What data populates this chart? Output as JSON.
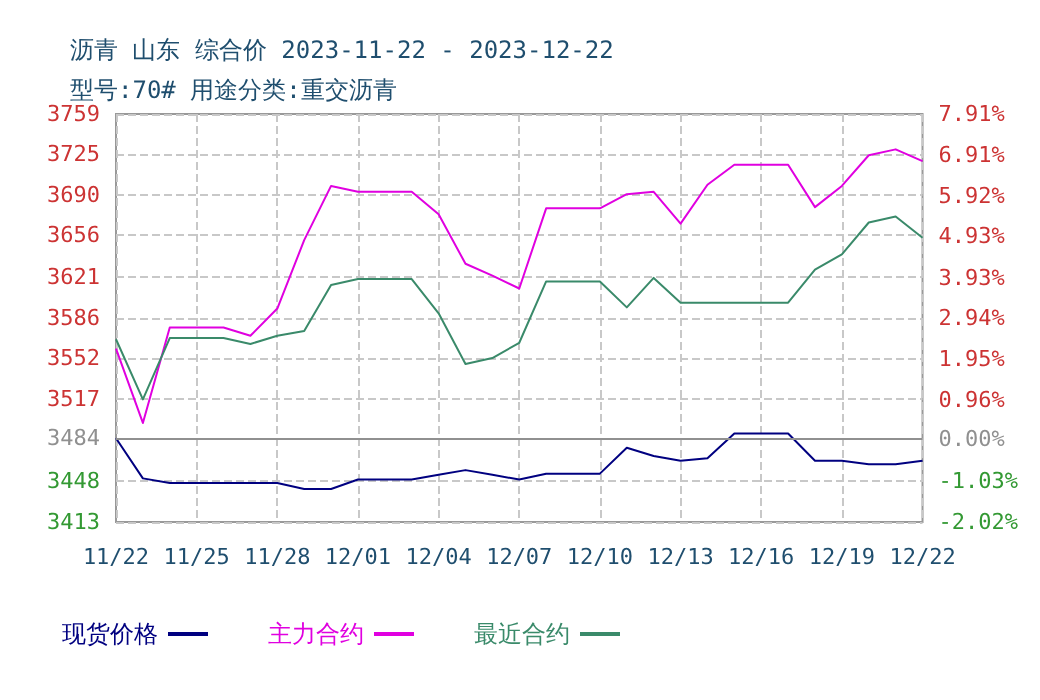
{
  "chart_data": {
    "type": "line",
    "title": "沥青 山东 综合价 2023-11-22 - 2023-12-22",
    "subtitle": "型号:70# 用途分类:重交沥青",
    "categories": [
      "11/22",
      null,
      null,
      "11/25",
      null,
      null,
      "11/28",
      null,
      null,
      "12/01",
      null,
      null,
      "12/04",
      null,
      null,
      "12/07",
      null,
      null,
      "12/10",
      null,
      null,
      "12/13",
      null,
      null,
      "12/16",
      null,
      null,
      "12/19",
      null,
      null,
      "12/22"
    ],
    "series": [
      {
        "name": "现货价格",
        "color": "#000080",
        "values": [
          3484,
          3450,
          3446,
          3446,
          3446,
          3446,
          3446,
          3441,
          3441,
          3449,
          3449,
          3449,
          3453,
          3457,
          3453,
          3449,
          3454,
          3454,
          3454,
          3476,
          3469,
          3465,
          3467,
          3488,
          3488,
          3488,
          3465,
          3465,
          3462,
          3462,
          3465
        ]
      },
      {
        "name": "主力合约",
        "color": "#e000e0",
        "values": [
          3560,
          3497,
          3578,
          3578,
          3578,
          3571,
          3594,
          3652,
          3698,
          3693,
          3693,
          3693,
          3674,
          3632,
          3622,
          3611,
          3679,
          3679,
          3679,
          3691,
          3693,
          3666,
          3699,
          3716,
          3716,
          3716,
          3680,
          3698,
          3724,
          3729,
          3719
        ]
      },
      {
        "name": "最近合约",
        "color": "#3a8a6a",
        "values": [
          3568,
          3517,
          3569,
          3569,
          3569,
          3564,
          3571,
          3575,
          3614,
          3619,
          3619,
          3619,
          3590,
          3547,
          3552,
          3565,
          3617,
          3617,
          3617,
          3595,
          3620,
          3599,
          3599,
          3599,
          3599,
          3599,
          3627,
          3640,
          3667,
          3672,
          3654
        ]
      }
    ],
    "ylim": [
      3413,
      3759
    ],
    "yticks": [
      3413,
      3448,
      3484,
      3517,
      3552,
      3586,
      3621,
      3656,
      3690,
      3725,
      3759
    ],
    "y2lim": [
      -2.02,
      7.91
    ],
    "y2ticks": [
      {
        "value": -2.02,
        "label": "-2.02%"
      },
      {
        "value": -1.03,
        "label": "-1.03%"
      },
      {
        "value": 0,
        "label": "0.00%"
      },
      {
        "value": 0.96,
        "label": "0.96%"
      },
      {
        "value": 1.95,
        "label": "1.95%"
      },
      {
        "value": 2.94,
        "label": "2.94%"
      },
      {
        "value": 3.93,
        "label": "3.93%"
      },
      {
        "value": 4.93,
        "label": "4.93%"
      },
      {
        "value": 5.92,
        "label": "5.92%"
      },
      {
        "value": 6.91,
        "label": "6.91%"
      },
      {
        "value": 7.91,
        "label": "7.91%"
      }
    ],
    "ref_lines": [
      {
        "axis": "y",
        "value": 3484,
        "color": "#909090"
      }
    ],
    "grid": true,
    "legend": "bottom",
    "marker": "none",
    "line_style": "solid"
  }
}
